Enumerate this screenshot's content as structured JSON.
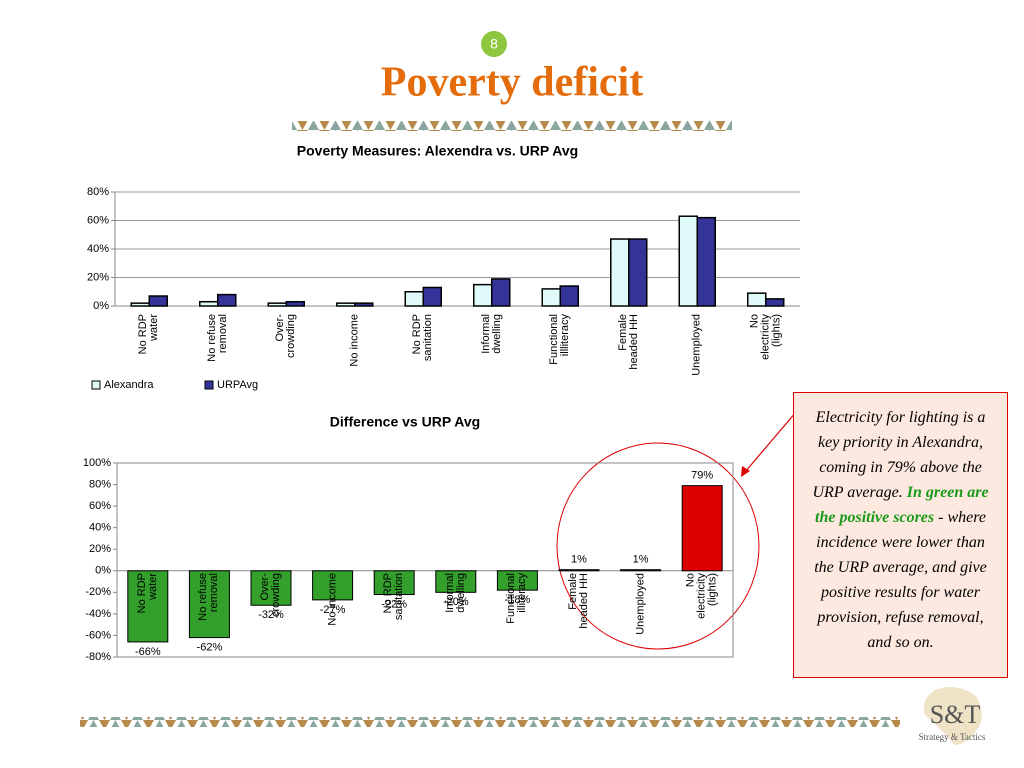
{
  "slide_number": "8",
  "title": "Poverty deficit",
  "chart_data": [
    {
      "type": "bar",
      "title": "Poverty Measures: Alexendra vs. URP Avg",
      "categories": [
        "No RDP\nwater",
        "No refuse\nremoval",
        "Over-\ncrowding",
        "No income",
        "No RDP\nsanitation",
        "Informal\ndwelling",
        "Functional\nillliteracy",
        "Female\nheaded HH",
        "Unemployed",
        "No\nelectricity\n(lights)"
      ],
      "series": [
        {
          "name": "Alexandra",
          "color": "#e0fafa",
          "values": [
            2,
            3,
            2,
            2,
            10,
            15,
            12,
            47,
            63,
            9
          ]
        },
        {
          "name": "URPAvg",
          "color": "#333399",
          "values": [
            7,
            8,
            3,
            2,
            13,
            19,
            14,
            47,
            62,
            5
          ]
        }
      ],
      "ylim": [
        0,
        80
      ],
      "yticks": [
        {
          "value": 0,
          "label": "0%"
        },
        {
          "value": 20,
          "label": "20%"
        },
        {
          "value": 40,
          "label": "40%"
        },
        {
          "value": 60,
          "label": "60%"
        },
        {
          "value": 80,
          "label": "80%"
        }
      ],
      "grid": true,
      "legend": "bottom-left"
    },
    {
      "type": "bar",
      "title": "Difference vs URP Avg",
      "categories": [
        "No RDP\nwater",
        "No refuse\nremoval",
        "Over-\ncrowding",
        "No income",
        "No RDP\nsanitation",
        "Informal\ndwelling",
        "Functional\nilliteracy",
        "Female\nheaded HH",
        "Unemployed",
        "No\nelectricity\n(lights)"
      ],
      "values": [
        -66,
        -62,
        -32,
        -27,
        -22,
        -20,
        -18,
        1,
        1,
        79
      ],
      "value_labels": [
        "-66%",
        "-62%",
        "-32%",
        "-27%",
        "-22%",
        "-20%",
        "-18%",
        "1%",
        "1%",
        "79%"
      ],
      "colors": [
        "#33a02c",
        "#33a02c",
        "#33a02c",
        "#33a02c",
        "#33a02c",
        "#33a02c",
        "#33a02c",
        "#33a02c",
        "#33a02c",
        "#dd0000"
      ],
      "ylim": [
        -80,
        100
      ],
      "yticks": [
        {
          "value": -80,
          "label": "-80%"
        },
        {
          "value": -60,
          "label": "-60%"
        },
        {
          "value": -40,
          "label": "-40%"
        },
        {
          "value": -20,
          "label": "-20%"
        },
        {
          "value": 0,
          "label": "0%"
        },
        {
          "value": 20,
          "label": "20%"
        },
        {
          "value": 40,
          "label": "40%"
        },
        {
          "value": 60,
          "label": "60%"
        },
        {
          "value": 80,
          "label": "80%"
        },
        {
          "value": 100,
          "label": "100%"
        }
      ],
      "grid": false
    }
  ],
  "callout": {
    "text_before": "Electricity for lighting is a key priority in Alexandra, coming in 79% above the URP average. ",
    "highlight": "In green are the positive scores",
    "text_after": " - where incidence were lower than the URP average, and give positive results for water provision, refuse removal, and so on."
  },
  "logo": {
    "mark": "S&T",
    "tagline": "Strategy & Tactics"
  }
}
